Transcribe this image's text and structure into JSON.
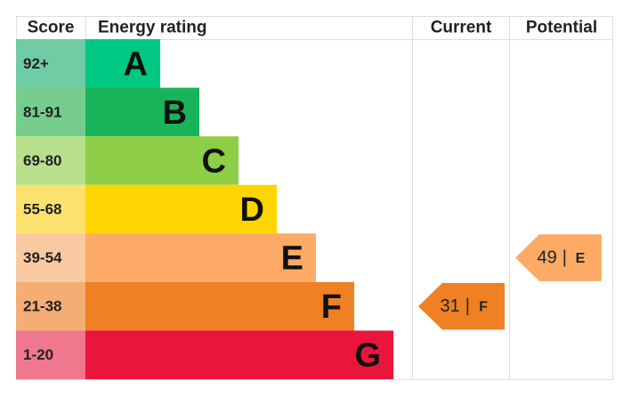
{
  "header": {
    "score": "Score",
    "rating": "Energy rating",
    "current": "Current",
    "potential": "Potential"
  },
  "bands": [
    {
      "range": "92+",
      "letter": "A",
      "color": "#00c781",
      "light_color": "#6fcca4"
    },
    {
      "range": "81-91",
      "letter": "B",
      "color": "#19b459",
      "light_color": "#75cc8c"
    },
    {
      "range": "69-80",
      "letter": "C",
      "color": "#8dce46",
      "light_color": "#b8e08c"
    },
    {
      "range": "55-68",
      "letter": "D",
      "color": "#ffd500",
      "light_color": "#fde16f"
    },
    {
      "range": "39-54",
      "letter": "E",
      "color": "#fcaa65",
      "light_color": "#f9c9a1"
    },
    {
      "range": "21-38",
      "letter": "F",
      "color": "#ef8023",
      "light_color": "#f4ad75"
    },
    {
      "range": "1-20",
      "letter": "G",
      "color": "#e9153b",
      "light_color": "#f0788e"
    }
  ],
  "current": {
    "score": 31,
    "separator": "|",
    "letter": "F"
  },
  "potential": {
    "score": 49,
    "separator": "|",
    "letter": "E"
  }
}
